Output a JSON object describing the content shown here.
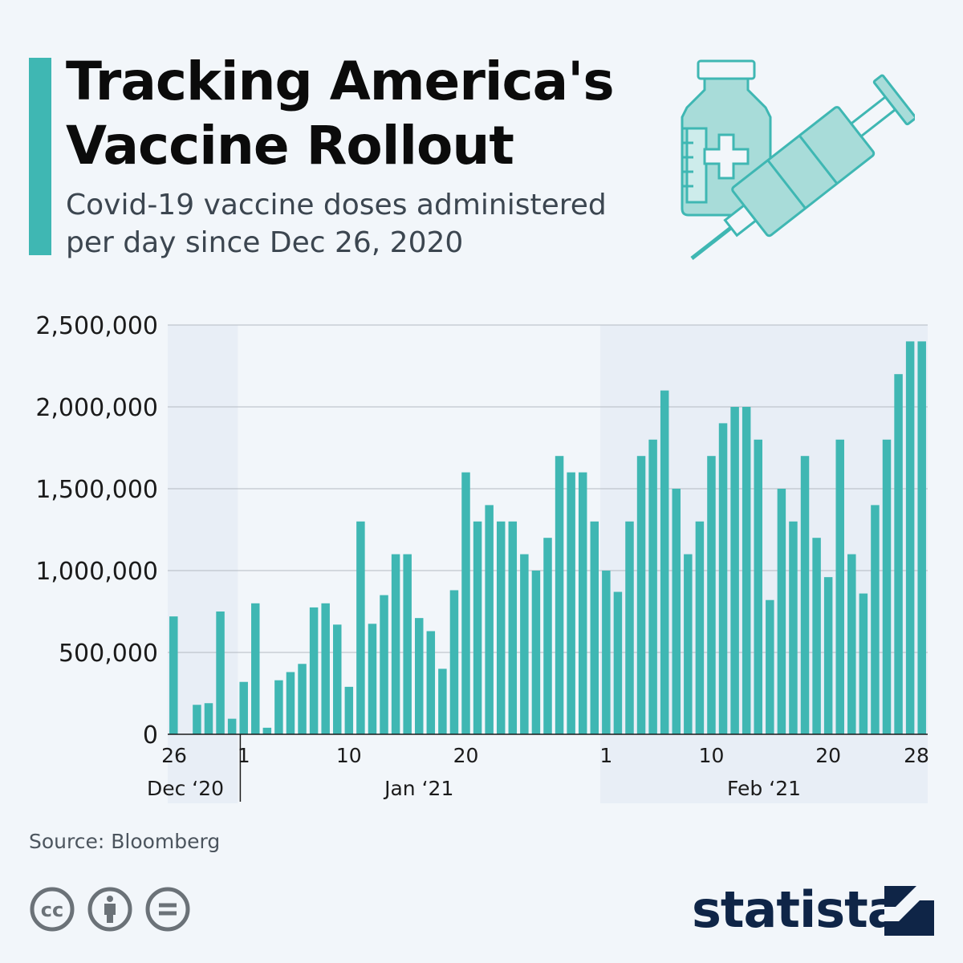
{
  "header": {
    "title": "Tracking America's Vaccine Rollout",
    "subtitle": "Covid-19 vaccine doses administered per day since Dec 26, 2020"
  },
  "colors": {
    "bar": "#3fb7b3",
    "accent": "#3fb7b3",
    "shaded_band": "#e8eef6",
    "background": "#f2f6fa",
    "brand": "#0f2547"
  },
  "icons": [
    "vaccine-vial-icon",
    "syringe-icon",
    "creative-commons-icon",
    "attribution-icon",
    "no-derivatives-icon",
    "statista-logo-icon"
  ],
  "footer": {
    "source": "Source: Bloomberg",
    "brand": "statista"
  },
  "chart_data": {
    "type": "bar",
    "title": "Tracking America's Vaccine Rollout",
    "subtitle": "Covid-19 vaccine doses administered per day since Dec 26, 2020",
    "xlabel": "",
    "ylabel": "",
    "ylim": [
      0,
      2500000
    ],
    "yticks": [
      0,
      500000,
      1000000,
      1500000,
      2000000,
      2500000
    ],
    "ytick_labels": [
      "0",
      "500,000",
      "1,000,000",
      "1,500,000",
      "2,000,000",
      "2,500,000"
    ],
    "grid": true,
    "legend": "none",
    "months": [
      {
        "label": "Dec ‘20",
        "start": "2020-12-26",
        "end": "2020-12-31",
        "shaded": true
      },
      {
        "label": "Jan ‘21",
        "start": "2021-01-01",
        "end": "2021-01-31",
        "shaded": false
      },
      {
        "label": "Feb ‘21",
        "start": "2021-02-01",
        "end": "2021-02-28",
        "shaded": true
      }
    ],
    "x_tick_labels": [
      {
        "date": "2020-12-26",
        "label": "26"
      },
      {
        "date": "2021-01-01",
        "label": "1"
      },
      {
        "date": "2021-01-10",
        "label": "10"
      },
      {
        "date": "2021-01-20",
        "label": "20"
      },
      {
        "date": "2021-02-01",
        "label": "1"
      },
      {
        "date": "2021-02-10",
        "label": "10"
      },
      {
        "date": "2021-02-20",
        "label": "20"
      },
      {
        "date": "2021-02-28",
        "label": "28"
      }
    ],
    "x": [
      "2020-12-26",
      "2020-12-27",
      "2020-12-28",
      "2020-12-29",
      "2020-12-30",
      "2020-12-31",
      "2021-01-01",
      "2021-01-02",
      "2021-01-03",
      "2021-01-04",
      "2021-01-05",
      "2021-01-06",
      "2021-01-07",
      "2021-01-08",
      "2021-01-09",
      "2021-01-10",
      "2021-01-11",
      "2021-01-12",
      "2021-01-13",
      "2021-01-14",
      "2021-01-15",
      "2021-01-16",
      "2021-01-17",
      "2021-01-18",
      "2021-01-19",
      "2021-01-20",
      "2021-01-21",
      "2021-01-22",
      "2021-01-23",
      "2021-01-24",
      "2021-01-25",
      "2021-01-26",
      "2021-01-27",
      "2021-01-28",
      "2021-01-29",
      "2021-01-30",
      "2021-01-31",
      "2021-02-01",
      "2021-02-02",
      "2021-02-03",
      "2021-02-04",
      "2021-02-05",
      "2021-02-06",
      "2021-02-07",
      "2021-02-08",
      "2021-02-09",
      "2021-02-10",
      "2021-02-11",
      "2021-02-12",
      "2021-02-13",
      "2021-02-14",
      "2021-02-15",
      "2021-02-16",
      "2021-02-17",
      "2021-02-18",
      "2021-02-19",
      "2021-02-20",
      "2021-02-21",
      "2021-02-22",
      "2021-02-23",
      "2021-02-24",
      "2021-02-25",
      "2021-02-26",
      "2021-02-27",
      "2021-02-28"
    ],
    "values": [
      720000,
      0,
      180000,
      190000,
      750000,
      95000,
      320000,
      800000,
      40000,
      330000,
      380000,
      430000,
      775000,
      800000,
      670000,
      290000,
      1300000,
      675000,
      850000,
      1100000,
      1100000,
      710000,
      630000,
      400000,
      880000,
      1600000,
      1300000,
      1400000,
      1300000,
      1300000,
      1100000,
      1000000,
      1200000,
      1700000,
      1600000,
      1600000,
      1300000,
      1000000,
      870000,
      1300000,
      1700000,
      1800000,
      2100000,
      1500000,
      1100000,
      1300000,
      1700000,
      1900000,
      2000000,
      2000000,
      1800000,
      820000,
      1500000,
      1300000,
      1700000,
      1200000,
      960000,
      1800000,
      1100000,
      860000,
      1400000,
      1800000,
      2200000,
      2400000,
      2400000
    ]
  }
}
